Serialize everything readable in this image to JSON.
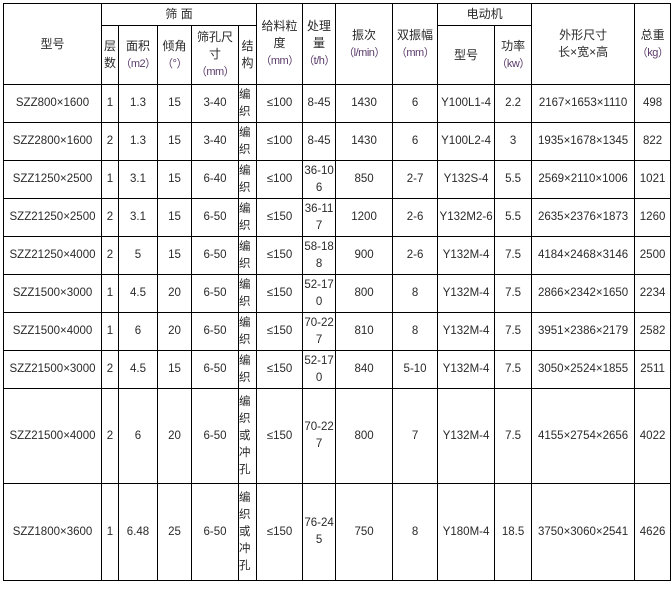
{
  "header": {
    "model": "型号",
    "screen_group": "筛 面",
    "layers": "层数",
    "area": "面积",
    "area_unit": "（m2）",
    "angle": "倾角",
    "angle_unit": "（°）",
    "aperture": "筛孔尺寸",
    "aperture_unit": "（mm）",
    "structure": "结构",
    "feed_size": "给料粒度",
    "feed_size_unit": "（mm）",
    "capacity": "处理量",
    "capacity_unit": "（t/h）",
    "frequency": "振次",
    "frequency_unit": "（l/min）",
    "amplitude": "双振幅",
    "amplitude_unit": "（mm）",
    "motor_group": "电动机",
    "motor_model": "型号",
    "power": "功率",
    "power_unit": "（kw）",
    "dimensions": "外形尺寸",
    "dimensions_sub": "长×宽×高",
    "weight": "总重",
    "weight_unit": "（kg）"
  },
  "rows": [
    [
      "SZZ800×1600",
      "1",
      "1.3",
      "15",
      "3-40",
      "编织",
      "≤100",
      "8-45",
      "1430",
      "6",
      "Y100L1-4",
      "2.2",
      "2167×1653×1110",
      "498"
    ],
    [
      "SZZ2800×1600",
      "2",
      "1.3",
      "15",
      "3-40",
      "编织",
      "≤100",
      "8-45",
      "1430",
      "6",
      "Y100L2-4",
      "3",
      "1935×1678×1345",
      "822"
    ],
    [
      "SZZ1250×2500",
      "1",
      "3.1",
      "15",
      "6-40",
      "编织",
      "≤100",
      "36-106",
      "850",
      "2-7",
      "Y132S-4",
      "5.5",
      "2569×2110×1006",
      "1021"
    ],
    [
      "SZZ21250×2500",
      "2",
      "3.1",
      "15",
      "6-50",
      "编织",
      "≤150",
      "36-117",
      "1200",
      "2-6",
      "Y132M2-6",
      "5.5",
      "2635×2376×1873",
      "1260"
    ],
    [
      "SZZ21250×4000",
      "2",
      "5",
      "15",
      "6-50",
      "编织",
      "≤150",
      "58-188",
      "900",
      "2-6",
      "Y132M-4",
      "7.5",
      "4184×2468×3146",
      "2500"
    ],
    [
      "SZZ1500×3000",
      "1",
      "4.5",
      "20",
      "6-50",
      "编织",
      "≤150",
      "52-170",
      "800",
      "8",
      "Y132M-4",
      "7.5",
      "2866×2342×1650",
      "2234"
    ],
    [
      "SZZ1500×4000",
      "1",
      "6",
      "20",
      "6-50",
      "编织",
      "≤150",
      "70-227",
      "810",
      "8",
      "Y132M-4",
      "7.5",
      "3951×2386×2179",
      "2582"
    ],
    [
      "SZZ21500×3000",
      "2",
      "4.5",
      "15",
      "6-50",
      "编织",
      "≤150",
      "52-170",
      "840",
      "5-10",
      "Y132M-4",
      "7.5",
      "3050×2524×1855",
      "2511"
    ],
    [
      "SZZ21500×4000",
      "2",
      "6",
      "20",
      "6-50",
      "编织或冲孔",
      "≤150",
      "70-227",
      "800",
      "7",
      "Y132M-4",
      "7.5",
      "4155×2754×2656",
      "4022"
    ],
    [
      "SZZ1800×3600",
      "1",
      "6.48",
      "25",
      "6-50",
      "编织或冲孔",
      "≤150",
      "76-245",
      "750",
      "8",
      "Y180M-4",
      "18.5",
      "3750×3060×2541",
      "4626"
    ]
  ]
}
